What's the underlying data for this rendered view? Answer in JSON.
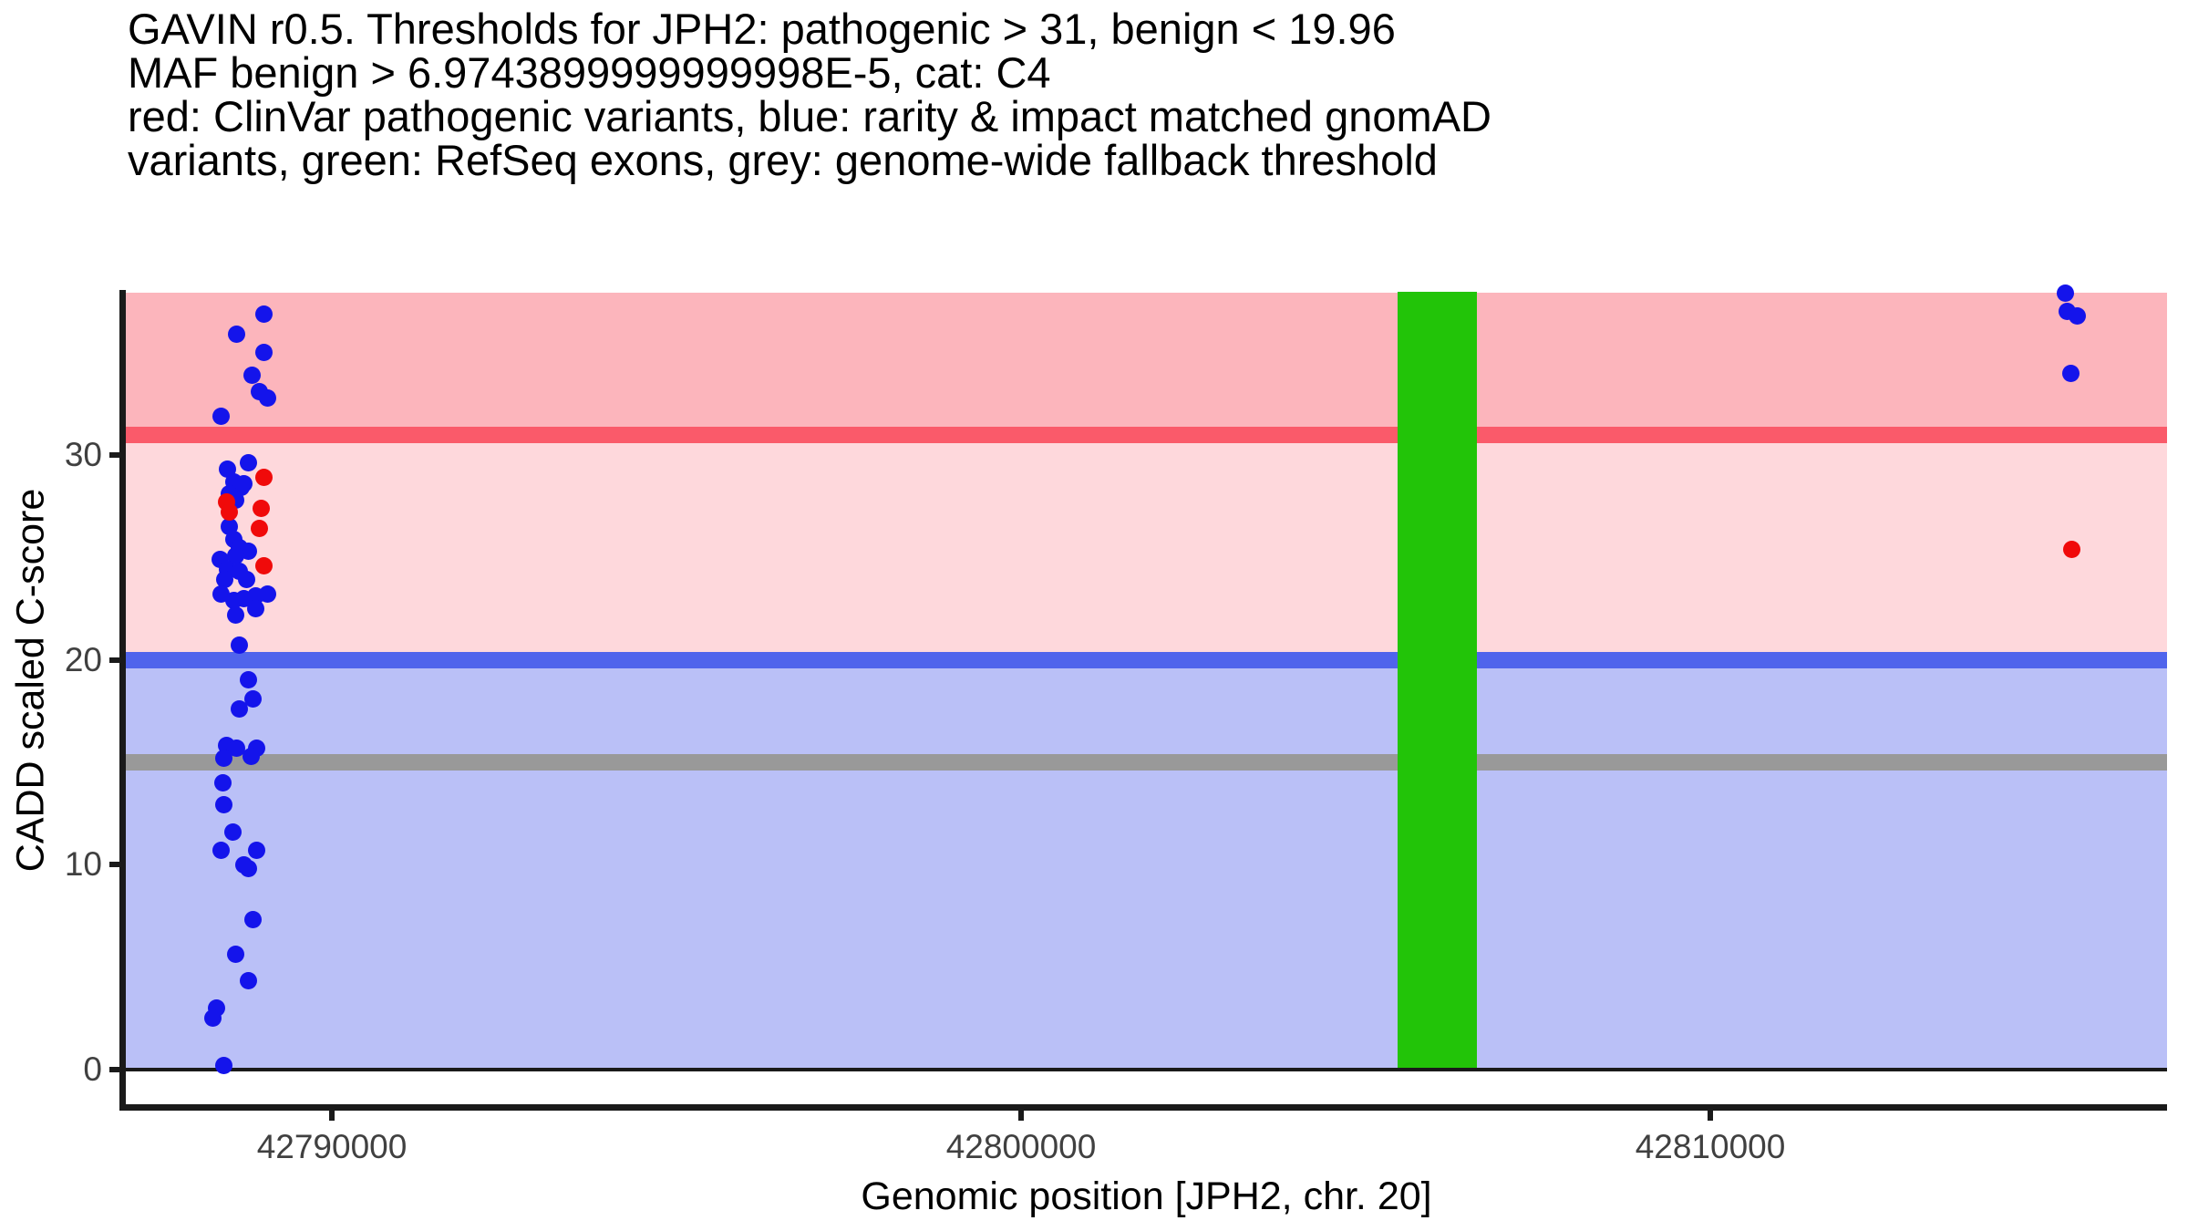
{
  "title_lines": [
    "GAVIN r0.5. Thresholds for JPH2: pathogenic > 31, benign < 19.96",
    "MAF benign > 6.9743899999999998E-5, cat: C4",
    "red: ClinVar pathogenic variants, blue: rarity & impact matched gnomAD",
    "variants, green: RefSeq exons, grey: genome-wide fallback threshold"
  ],
  "axes": {
    "y_label": "CADD scaled C-score",
    "x_label": "Genomic position [JPH2, chr. 20]",
    "y_ticks": [
      {
        "label": "0",
        "value": 0
      },
      {
        "label": "10",
        "value": 10
      },
      {
        "label": "20",
        "value": 20
      },
      {
        "label": "30",
        "value": 30
      }
    ],
    "x_ticks": [
      {
        "label": "42790000",
        "value": 42790000
      },
      {
        "label": "42800000",
        "value": 42800000
      },
      {
        "label": "42810000",
        "value": 42810000
      }
    ]
  },
  "chart_data": {
    "type": "scatter",
    "title": "GAVIN r0.5. Thresholds for JPH2",
    "xlabel": "Genomic position [JPH2, chr. 20]",
    "ylabel": "CADD scaled C-score",
    "gene": "JPH2",
    "chromosome": "20",
    "category": "C4",
    "xlim": [
      42787011,
      42816628
    ],
    "ylim": [
      0,
      37.95
    ],
    "thresholds": {
      "pathogenic_gt": 31,
      "benign_lt": 19.96,
      "maf_benign_gt": "6.9743899999999998E-5",
      "genome_wide_fallback": 15
    },
    "hlines": [
      {
        "name": "pathogenic-threshold",
        "value": 31,
        "color_key": "pathogenic_line"
      },
      {
        "name": "benign-threshold",
        "value": 19.96,
        "color_key": "benign_line"
      },
      {
        "name": "fallback-threshold",
        "value": 15,
        "color_key": "fallback_line"
      }
    ],
    "bands": [
      {
        "name": "pathogenic-region",
        "from": 31,
        "to": 37.95,
        "color_key": "band_pathogenic"
      },
      {
        "name": "vous-region",
        "from": 19.96,
        "to": 31,
        "color_key": "band_vous"
      },
      {
        "name": "benign-region",
        "from": 0,
        "to": 19.96,
        "color_key": "band_benign"
      }
    ],
    "exons": [
      {
        "name": "refseq-exon",
        "x_start": 42805460,
        "x_end": 42806620
      }
    ],
    "series": [
      {
        "name": "rarity & impact matched gnomAD variants",
        "color_key": "dot_blue",
        "points": [
          [
            42789008,
            36.9
          ],
          [
            42788624,
            35.9
          ],
          [
            42789021,
            35.0
          ],
          [
            42788849,
            33.9
          ],
          [
            42788955,
            33.1
          ],
          [
            42789074,
            32.8
          ],
          [
            42788399,
            31.9
          ],
          [
            42788796,
            29.6
          ],
          [
            42788492,
            29.3
          ],
          [
            42788584,
            28.7
          ],
          [
            42788730,
            28.6
          ],
          [
            42788690,
            28.4
          ],
          [
            42788518,
            28.1
          ],
          [
            42788598,
            27.8
          ],
          [
            42788518,
            26.5
          ],
          [
            42788584,
            25.9
          ],
          [
            42788664,
            25.5
          ],
          [
            42788796,
            25.3
          ],
          [
            42788598,
            25.1
          ],
          [
            42788386,
            24.9
          ],
          [
            42788492,
            24.4
          ],
          [
            42788651,
            24.3
          ],
          [
            42788452,
            23.9
          ],
          [
            42788757,
            23.9
          ],
          [
            42788399,
            23.2
          ],
          [
            42788889,
            23.1
          ],
          [
            42789061,
            23.2
          ],
          [
            42788584,
            22.9
          ],
          [
            42788730,
            23.0
          ],
          [
            42788889,
            22.5
          ],
          [
            42788598,
            22.2
          ],
          [
            42788664,
            20.7
          ],
          [
            42788796,
            19.0
          ],
          [
            42788862,
            18.1
          ],
          [
            42788664,
            17.6
          ],
          [
            42788466,
            15.8
          ],
          [
            42788624,
            15.7
          ],
          [
            42788915,
            15.7
          ],
          [
            42788823,
            15.3
          ],
          [
            42788426,
            15.2
          ],
          [
            42788413,
            14.0
          ],
          [
            42788426,
            12.9
          ],
          [
            42788571,
            11.6
          ],
          [
            42788399,
            10.7
          ],
          [
            42788915,
            10.7
          ],
          [
            42788717,
            10.0
          ],
          [
            42788796,
            9.8
          ],
          [
            42788862,
            7.3
          ],
          [
            42788611,
            5.6
          ],
          [
            42788796,
            4.3
          ],
          [
            42788333,
            3.0
          ],
          [
            42788280,
            2.5
          ],
          [
            42788426,
            0.2
          ],
          [
            42815146,
            37.9
          ],
          [
            42815185,
            37.0
          ],
          [
            42815318,
            36.8
          ],
          [
            42815238,
            34.0
          ]
        ]
      },
      {
        "name": "ClinVar pathogenic variants",
        "color_key": "dot_red",
        "points": [
          [
            42789021,
            28.9
          ],
          [
            42788466,
            27.7
          ],
          [
            42788518,
            27.2
          ],
          [
            42788981,
            27.4
          ],
          [
            42788955,
            26.4
          ],
          [
            42789021,
            24.6
          ],
          [
            42815251,
            25.4
          ]
        ]
      }
    ]
  },
  "colors": {
    "band_pathogenic": "#fcb5bc",
    "band_vous": "#fed8dc",
    "band_benign": "#bac0f7",
    "pathogenic_line": "#fa5a6a",
    "benign_line": "#5064ec",
    "fallback_line": "#999999",
    "exon_green": "#22c408",
    "dot_red": "#f00a0a",
    "dot_blue": "#1414eb",
    "axis": "#1a1a1a",
    "baseline": "#1a1a1a",
    "tick_label": "#404040",
    "title_text": "#000000"
  }
}
